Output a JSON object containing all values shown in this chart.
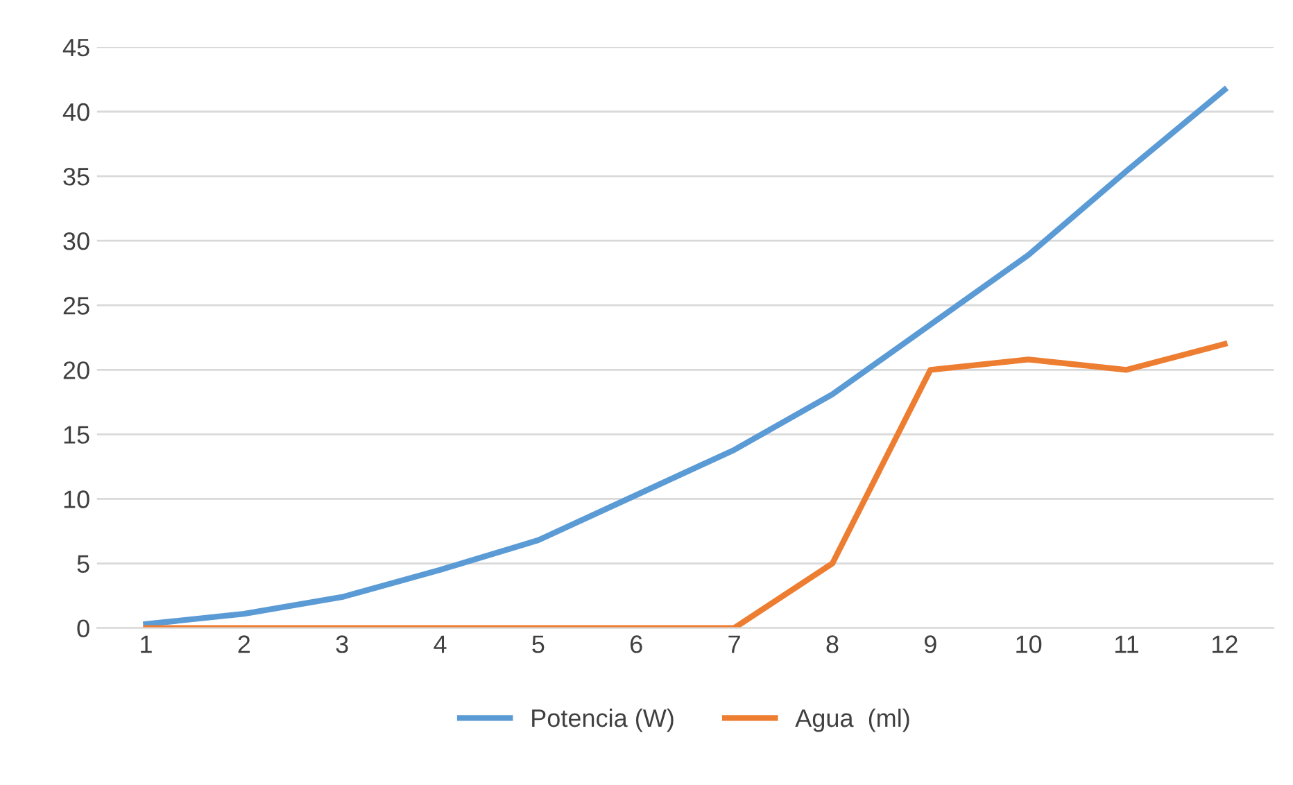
{
  "chart_data": {
    "type": "line",
    "categories": [
      "1",
      "2",
      "3",
      "4",
      "5",
      "6",
      "7",
      "8",
      "9",
      "10",
      "11",
      "12"
    ],
    "series": [
      {
        "name": "Potencia (W)",
        "color": "#5b9bd5",
        "values": [
          0.3,
          1.1,
          2.4,
          4.5,
          6.8,
          10.3,
          13.8,
          18.1,
          23.5,
          28.9,
          35.4,
          41.7
        ]
      },
      {
        "name": "Agua  (ml)",
        "color": "#ed7d31",
        "values": [
          0,
          0,
          0,
          0,
          0,
          0,
          0,
          5,
          20,
          20.8,
          20,
          22
        ]
      }
    ],
    "ylim": [
      0,
      45
    ],
    "yticks": [
      0,
      5,
      10,
      15,
      20,
      25,
      30,
      35,
      40,
      45
    ],
    "grid": "y",
    "legend": "bottom",
    "marker": "none",
    "line_style": "solid"
  }
}
